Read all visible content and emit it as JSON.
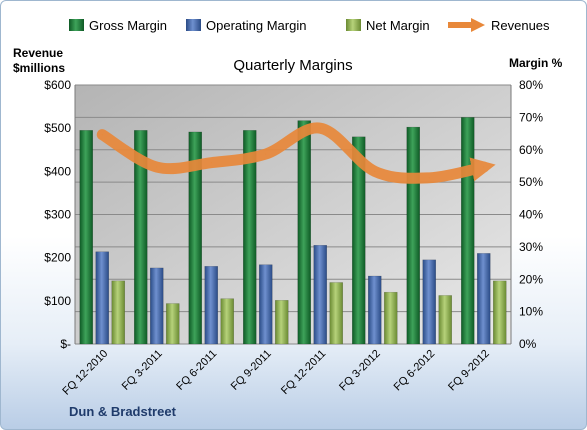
{
  "chart_data": {
    "type": "bar",
    "title": "Quarterly Margins",
    "categories": [
      "FQ 12-2010",
      "FQ 3-2011",
      "FQ 6-2011",
      "FQ 9-2011",
      "FQ 12-2011",
      "FQ 3-2012",
      "FQ 6-2012",
      "FQ 9-2012"
    ],
    "series": [
      {
        "name": "Gross Margin",
        "axis": "right",
        "color": "#1e7a3c",
        "values": [
          66,
          66,
          65.5,
          66,
          69,
          64,
          67,
          70
        ]
      },
      {
        "name": "Operating Margin",
        "axis": "right",
        "color": "#3d63a8",
        "values": [
          28.5,
          23.5,
          24,
          24.5,
          30.5,
          21,
          26,
          28
        ]
      },
      {
        "name": "Net Margin",
        "axis": "right",
        "color": "#8db04e",
        "values": [
          19.5,
          12.5,
          14,
          13.5,
          19,
          16,
          15,
          19.5
        ]
      },
      {
        "name": "Revenues",
        "axis": "left",
        "type": "line",
        "color": "#e8883a",
        "values": [
          485,
          410,
          420,
          440,
          500,
          400,
          385,
          410
        ]
      }
    ],
    "ylabel_left": "Revenue $millions",
    "ylabel_right": "Margin %",
    "ylim_left": [
      0,
      600
    ],
    "ylim_right": [
      0,
      80
    ],
    "yticks_left": [
      "$-",
      "$100",
      "$200",
      "$300",
      "$400",
      "$500",
      "$600"
    ],
    "yticks_right": [
      "0%",
      "10%",
      "20%",
      "30%",
      "40%",
      "50%",
      "60%",
      "70%",
      "80%"
    ],
    "grid": true,
    "legend": "top"
  },
  "legend": {
    "gross": "Gross Margin",
    "operating": "Operating Margin",
    "net": "Net Margin",
    "revenues": "Revenues"
  },
  "axes": {
    "left_title_line1": "Revenue",
    "left_title_line2": "$millions",
    "right_title": "Margin %"
  },
  "footer": {
    "company": "Dun & Bradstreet"
  }
}
